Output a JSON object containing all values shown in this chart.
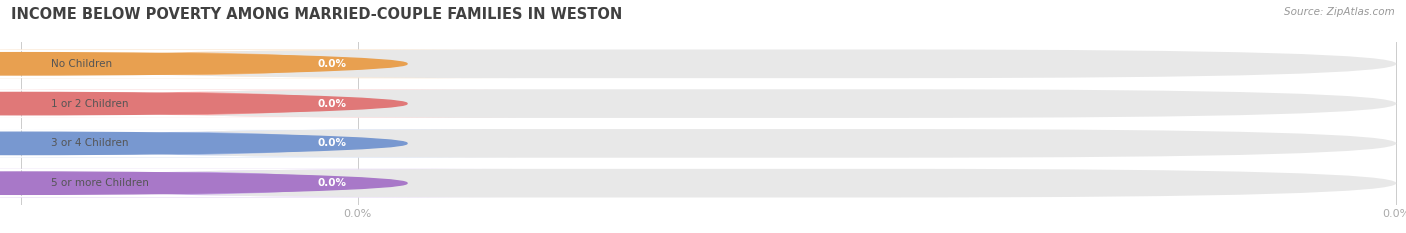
{
  "title": "INCOME BELOW POVERTY AMONG MARRIED-COUPLE FAMILIES IN WESTON",
  "source": "Source: ZipAtlas.com",
  "categories": [
    "No Children",
    "1 or 2 Children",
    "3 or 4 Children",
    "5 or more Children"
  ],
  "values": [
    0.0,
    0.0,
    0.0,
    0.0
  ],
  "bar_colors": [
    "#f5c08a",
    "#f5a0a0",
    "#aabfe8",
    "#c8a8e8"
  ],
  "bar_bg_color": "#e8e8e8",
  "dot_colors": [
    "#e8a050",
    "#e07878",
    "#7898d0",
    "#a878c8"
  ],
  "background_color": "#ffffff",
  "title_color": "#404040",
  "source_color": "#999999",
  "tick_label_color": "#aaaaaa",
  "figsize": [
    14.06,
    2.33
  ],
  "dpi": 100,
  "bar_height": 0.72,
  "n_bars": 4
}
